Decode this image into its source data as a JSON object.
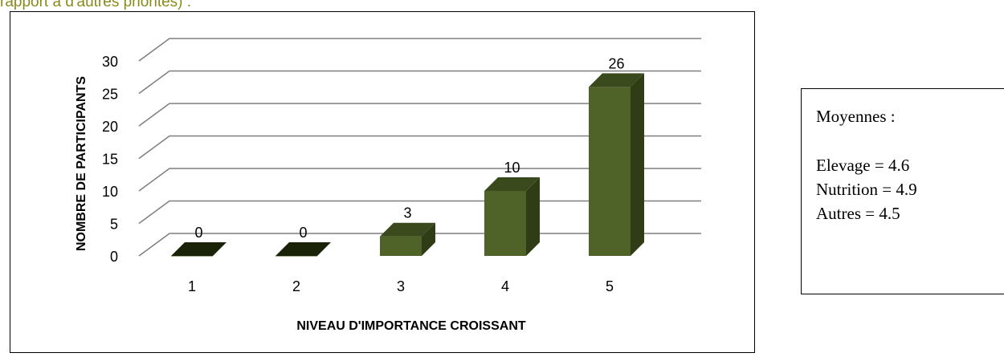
{
  "header": {
    "partial_text": "rapport à d'autres priorités) :"
  },
  "chart_data": {
    "type": "bar",
    "categories": [
      "1",
      "2",
      "3",
      "4",
      "5"
    ],
    "values": [
      0,
      0,
      3,
      10,
      26
    ],
    "title": "",
    "xlabel": "NIVEAU D'IMPORTANCE CROISSANT",
    "ylabel": "NOMBRE DE PARTICIPANTS",
    "ylim": [
      0,
      30
    ],
    "yticks": [
      "0",
      "5",
      "10",
      "15",
      "20",
      "25",
      "30"
    ],
    "grid": true,
    "bar_color": "#4f6228",
    "bar_side_color": "#2f3c16",
    "bar_top_color": "#3a4a1d"
  },
  "stats_box": {
    "title": "Moyennes :",
    "lines": [
      "Elevage = 4.6",
      "Nutrition = 4.9",
      "Autres = 4.5"
    ]
  }
}
